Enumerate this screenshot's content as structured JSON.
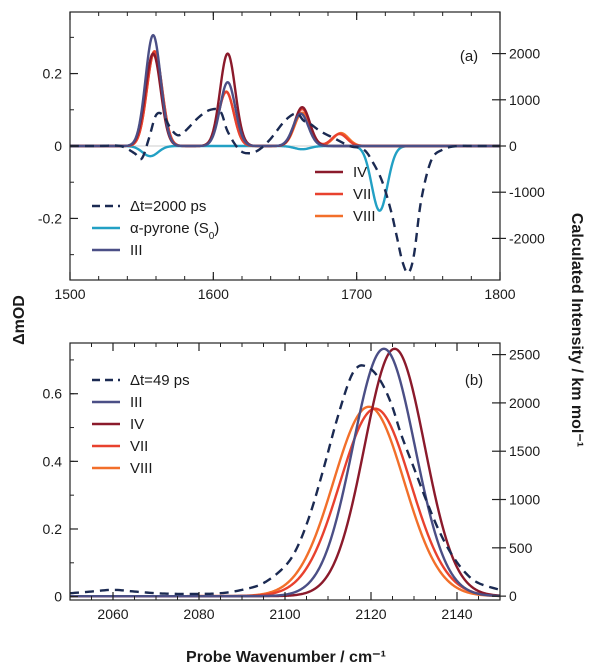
{
  "figure": {
    "left_axis_title": "ΔmOD",
    "right_axis_title": "Calculated Intensity / km mol⁻¹",
    "bottom_axis_title": "Probe Wavenumber / cm⁻¹"
  },
  "colors": {
    "exp": "#1b2a52",
    "pyrone": "#22a0c4",
    "III": "#4b4f86",
    "IV": "#8b1a2b",
    "VII": "#e8412e",
    "VIII": "#f26f2a"
  },
  "chart_data": [
    {
      "type": "line",
      "panel_label": "(a)",
      "x_ticks": [
        "1500",
        "1600",
        "1700",
        "1800"
      ],
      "y_left_ticks": [
        "0.2",
        "0",
        "-0.2"
      ],
      "y_right_ticks": [
        "2000",
        "1000",
        "0",
        "-1000",
        "-2000"
      ],
      "xlim": [
        1500,
        1800
      ],
      "ylim_left": [
        -0.37,
        0.37
      ],
      "ylim_right": [
        -2900,
        2900
      ],
      "legend": [
        {
          "key": "exp",
          "text": "Δt=2000 ps",
          "style": "dashed"
        },
        {
          "key": "pyrone",
          "text": "α-pyrone (S",
          "sub": "0",
          "tail": ")"
        },
        {
          "key": "III",
          "text": "III"
        },
        {
          "key": "IV",
          "text": "IV"
        },
        {
          "key": "VII",
          "text": "VII"
        },
        {
          "key": "VIII",
          "text": "VIII"
        }
      ],
      "series": [
        {
          "key": "exp",
          "name": "Δt=2000 ps",
          "axis": "left",
          "style": "dashed",
          "x": [
            1500,
            1520,
            1535,
            1545,
            1550,
            1555,
            1560,
            1565,
            1570,
            1575,
            1580,
            1590,
            1598,
            1605,
            1610,
            1618,
            1625,
            1632,
            1640,
            1650,
            1658,
            1663,
            1668,
            1675,
            1685,
            1695,
            1705,
            1712,
            1718,
            1724,
            1728,
            1732,
            1736,
            1740,
            1745,
            1752,
            1760,
            1770,
            1780,
            1790,
            1800
          ],
          "y": [
            0,
            0,
            0,
            -0.02,
            -0.035,
            0.02,
            0.085,
            0.085,
            0.05,
            0.03,
            0.04,
            0.08,
            0.1,
            0.095,
            0.04,
            -0.01,
            -0.02,
            -0.01,
            0.02,
            0.07,
            0.09,
            0.07,
            0.06,
            0.04,
            0.02,
            0,
            -0.01,
            -0.05,
            -0.1,
            -0.18,
            -0.25,
            -0.32,
            -0.35,
            -0.3,
            -0.15,
            -0.04,
            -0.01,
            0,
            0,
            0,
            0
          ]
        },
        {
          "key": "pyrone",
          "name": "α-pyrone (S0)",
          "axis": "right",
          "gaussians": [
            {
              "c": 1556,
              "a": -220,
              "s": 5.5
            },
            {
              "c": 1662,
              "a": -70,
              "s": 5.5
            },
            {
              "c": 1716,
              "a": -1400,
              "s": 5.5
            }
          ]
        },
        {
          "key": "III",
          "name": "III",
          "axis": "right",
          "gaussians": [
            {
              "c": 1558,
              "a": 2400,
              "s": 5.3
            },
            {
              "c": 1610,
              "a": 1380,
              "s": 5.3
            },
            {
              "c": 1661,
              "a": 700,
              "s": 5.3
            }
          ]
        },
        {
          "key": "IV",
          "name": "IV",
          "axis": "right",
          "gaussians": [
            {
              "c": 1558,
              "a": 2000,
              "s": 5.3
            },
            {
              "c": 1610,
              "a": 2000,
              "s": 5.3
            },
            {
              "c": 1662,
              "a": 840,
              "s": 5.3
            }
          ]
        },
        {
          "key": "VII",
          "name": "VII",
          "axis": "right",
          "gaussians": [
            {
              "c": 1559,
              "a": 2050,
              "s": 5.3
            },
            {
              "c": 1609,
              "a": 1170,
              "s": 5.3
            },
            {
              "c": 1662,
              "a": 800,
              "s": 5.3
            },
            {
              "c": 1688,
              "a": 260,
              "s": 5.3
            }
          ]
        },
        {
          "key": "VIII",
          "name": "VIII",
          "axis": "right",
          "gaussians": [
            {
              "c": 1559,
              "a": 2050,
              "s": 5.3
            },
            {
              "c": 1609,
              "a": 1180,
              "s": 5.3
            },
            {
              "c": 1662,
              "a": 720,
              "s": 5.3
            },
            {
              "c": 1689,
              "a": 280,
              "s": 5.3
            }
          ]
        }
      ]
    },
    {
      "type": "line",
      "panel_label": "(b)",
      "x_ticks": [
        "2060",
        "2080",
        "2100",
        "2120",
        "2140"
      ],
      "y_left_ticks": [
        "0",
        "0.2",
        "0.4",
        "0.6"
      ],
      "y_right_ticks": [
        "0",
        "500",
        "1000",
        "1500",
        "2000",
        "2500"
      ],
      "xlim": [
        2050,
        2150
      ],
      "ylim_left": [
        -0.01,
        0.75
      ],
      "ylim_right": [
        -40,
        2620
      ],
      "legend": [
        {
          "key": "exp",
          "text": "Δt=49 ps",
          "style": "dashed"
        },
        {
          "key": "III",
          "text": "III"
        },
        {
          "key": "IV",
          "text": "IV"
        },
        {
          "key": "VII",
          "text": "VII"
        },
        {
          "key": "VIII",
          "text": "VIII"
        }
      ],
      "series": [
        {
          "key": "exp",
          "name": "Δt=49 ps",
          "axis": "left",
          "style": "dashed",
          "x": [
            2050,
            2055,
            2060,
            2065,
            2070,
            2075,
            2080,
            2085,
            2090,
            2095,
            2100,
            2103,
            2106,
            2109,
            2112,
            2115,
            2117,
            2119,
            2121,
            2123,
            2125,
            2127,
            2130,
            2133,
            2136,
            2139,
            2142,
            2145,
            2150
          ],
          "y": [
            0.01,
            0.015,
            0.02,
            0.015,
            0.01,
            0.008,
            0.008,
            0.01,
            0.02,
            0.04,
            0.09,
            0.15,
            0.25,
            0.38,
            0.52,
            0.64,
            0.68,
            0.68,
            0.66,
            0.62,
            0.56,
            0.48,
            0.38,
            0.28,
            0.19,
            0.12,
            0.07,
            0.04,
            0.02
          ]
        },
        {
          "key": "III",
          "name": "III",
          "axis": "right",
          "gaussians": [
            {
              "c": 2123,
              "a": 2560,
              "s": 7.2
            }
          ]
        },
        {
          "key": "IV",
          "name": "IV",
          "axis": "right",
          "gaussians": [
            {
              "c": 2125.5,
              "a": 2560,
              "s": 7.0
            }
          ]
        },
        {
          "key": "VII",
          "name": "VII",
          "axis": "right",
          "gaussians": [
            {
              "c": 2121,
              "a": 1940,
              "s": 8.2
            }
          ]
        },
        {
          "key": "VIII",
          "name": "VIII",
          "axis": "right",
          "gaussians": [
            {
              "c": 2119.5,
              "a": 1960,
              "s": 8.2
            }
          ]
        }
      ]
    }
  ]
}
